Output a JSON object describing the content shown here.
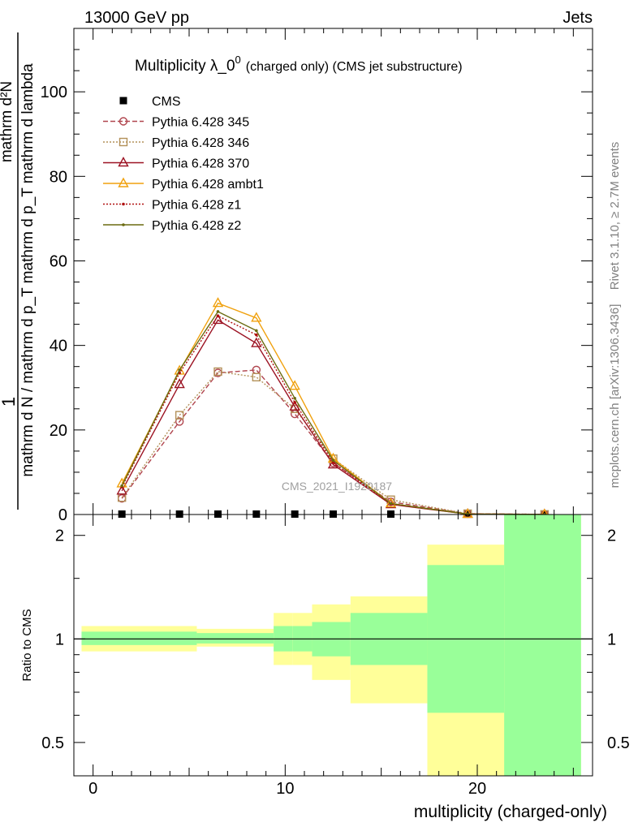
{
  "header": {
    "left": "13000 GeV pp",
    "right": "Jets"
  },
  "side_labels": {
    "rivet": "Rivet 3.1.10, ≥ 2.7M events",
    "mcplots": "mcplots.cern.ch [arXiv:1306.3436]"
  },
  "chart_data": [
    {
      "type": "line",
      "title_main": "Multiplicity λ_0",
      "title_sup": "0",
      "title_rest": "(charged only) (CMS jet substructure)",
      "ylabel_numerator": "mathrm d²N",
      "ylabel_denominator": "mathrm d N / mathrm d p_T mathrm d p_T mathrm d lambda",
      "ylabel_one": "1",
      "watermark": "CMS_2021_I1920187",
      "ylim": [
        0,
        115
      ],
      "xlim": [
        -1,
        26
      ],
      "yticks": [
        0,
        20,
        40,
        60,
        80,
        100
      ],
      "yticklabels": [
        "0",
        "20",
        "40",
        "60",
        "80",
        "100"
      ],
      "grid": false,
      "legend_position": "top-left",
      "bins": [
        [
          -1,
          3
        ],
        [
          3,
          6
        ],
        [
          6,
          7
        ],
        [
          7,
          10
        ],
        [
          10,
          11
        ],
        [
          11,
          14
        ],
        [
          14,
          17
        ],
        [
          17,
          22
        ],
        [
          22,
          26
        ]
      ],
      "series": [
        {
          "name": "CMS",
          "color": "#000000",
          "marker": "filled-square",
          "dash": "none",
          "x": [
            1.5,
            4.5,
            6.5,
            8.5,
            10.5,
            12.5,
            15.5,
            19.5,
            23.5
          ],
          "y": [
            0.1,
            0.1,
            0.1,
            0.1,
            0.1,
            0.1,
            0.1,
            0.1,
            0.1
          ]
        },
        {
          "name": "Pythia 6.428 345",
          "color": "#b0454e",
          "marker": "open-circle",
          "dash": "dashed",
          "x": [
            1.5,
            4.5,
            6.5,
            8.5,
            10.5,
            12.5,
            15.5,
            19.5,
            23.5
          ],
          "y": [
            3.8,
            22.0,
            33.5,
            34.2,
            23.8,
            12.2,
            3.0,
            0.2,
            0.03
          ]
        },
        {
          "name": "Pythia 6.428 346",
          "color": "#b39159",
          "marker": "open-square",
          "dash": "dotted",
          "x": [
            1.5,
            4.5,
            6.5,
            8.5,
            10.5,
            12.5,
            15.5,
            19.5,
            23.5
          ],
          "y": [
            4.0,
            23.5,
            33.8,
            32.5,
            25.0,
            13.2,
            3.5,
            0.2,
            0.03
          ]
        },
        {
          "name": "Pythia 6.428 370",
          "color": "#9c1323",
          "marker": "open-triangle",
          "dash": "solid",
          "x": [
            1.5,
            4.5,
            6.5,
            8.5,
            10.5,
            12.5,
            15.5,
            19.5,
            23.5
          ],
          "y": [
            5.6,
            30.8,
            46.0,
            40.5,
            25.5,
            11.8,
            2.4,
            0.1,
            0.02
          ]
        },
        {
          "name": "Pythia 6.428 ambt1",
          "color": "#f0a10e",
          "marker": "open-triangle",
          "dash": "solid",
          "x": [
            1.5,
            4.5,
            6.5,
            8.5,
            10.5,
            12.5,
            15.5,
            19.5,
            23.5
          ],
          "y": [
            7.3,
            34.0,
            50.0,
            46.5,
            30.4,
            13.2,
            2.6,
            0.1,
            0.02
          ]
        },
        {
          "name": "Pythia 6.428 z1",
          "color": "#b01010",
          "marker": "dot",
          "dash": "dotted",
          "x": [
            1.5,
            4.5,
            6.5,
            8.5,
            10.5,
            12.5,
            15.5,
            19.5,
            23.5
          ],
          "y": [
            6.5,
            33.5,
            47.0,
            42.5,
            26.5,
            12.3,
            2.5,
            0.1,
            0.02
          ]
        },
        {
          "name": "Pythia 6.428 z2",
          "color": "#6b6b10",
          "marker": "dot",
          "dash": "solid",
          "x": [
            1.5,
            4.5,
            6.5,
            8.5,
            10.5,
            12.5,
            15.5,
            19.5,
            23.5
          ],
          "y": [
            6.8,
            34.2,
            48.0,
            43.5,
            27.5,
            12.8,
            2.6,
            0.1,
            0.02
          ]
        }
      ]
    },
    {
      "type": "area",
      "ylabel": "Ratio to CMS",
      "xlabel": "multiplicity (charged-only)",
      "ylim": [
        0.4,
        2.3
      ],
      "log_y": true,
      "xlim": [
        -1,
        26
      ],
      "xticks": [
        0,
        10,
        20
      ],
      "xticklabels": [
        "0",
        "10",
        "20"
      ],
      "yticks": [
        0.5,
        1,
        2
      ],
      "yticklabels": [
        "0.5",
        "1",
        "2"
      ],
      "reference_line": 1,
      "band_colors": {
        "inner": "#99ff99",
        "outer": "#ffff99"
      },
      "bands": [
        {
          "x0": -0.6,
          "x1": 5.4,
          "inner": [
            0.96,
            1.05
          ],
          "outer": [
            0.92,
            1.09
          ]
        },
        {
          "x0": 5.4,
          "x1": 9.4,
          "inner": [
            0.97,
            1.04
          ],
          "outer": [
            0.95,
            1.07
          ]
        },
        {
          "x0": 9.4,
          "x1": 10.4,
          "inner": [
            0.92,
            1.09
          ],
          "outer": [
            0.84,
            1.19
          ]
        },
        {
          "x0": 10.4,
          "x1": 11.4,
          "inner": [
            0.92,
            1.09
          ],
          "outer": [
            0.84,
            1.19
          ]
        },
        {
          "x0": 11.4,
          "x1": 13.4,
          "inner": [
            0.89,
            1.12
          ],
          "outer": [
            0.76,
            1.26
          ]
        },
        {
          "x0": 13.4,
          "x1": 17.4,
          "inner": [
            0.84,
            1.19
          ],
          "outer": [
            0.65,
            1.33
          ]
        },
        {
          "x0": 17.4,
          "x1": 21.4,
          "inner": [
            0.61,
            1.64
          ],
          "outer": [
            0.4,
            1.88
          ]
        },
        {
          "x0": 21.4,
          "x1": 25.4,
          "inner": [
            0.4,
            2.3
          ],
          "outer": [
            0.4,
            2.3
          ]
        }
      ]
    }
  ]
}
